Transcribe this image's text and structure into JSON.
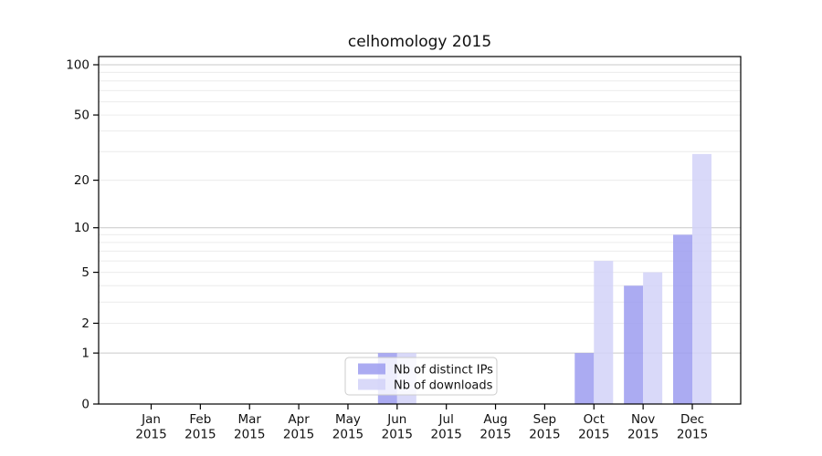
{
  "chart_data": {
    "type": "bar",
    "title": "celhomology 2015",
    "xlabel": "",
    "ylabel": "",
    "categories": [
      "Jan",
      "Feb",
      "Mar",
      "Apr",
      "May",
      "Jun",
      "Jul",
      "Aug",
      "Sep",
      "Oct",
      "Nov",
      "Dec"
    ],
    "year": "2015",
    "series": [
      {
        "name": "Nb of distinct IPs",
        "color": "#9c9cf0",
        "values": [
          0,
          0,
          0,
          0,
          0,
          1,
          0,
          0,
          0,
          1,
          4,
          9
        ]
      },
      {
        "name": "Nb of downloads",
        "color": "#d2d2f8",
        "values": [
          0,
          0,
          0,
          0,
          0,
          1,
          0,
          0,
          0,
          6,
          5,
          29
        ]
      }
    ],
    "axis": {
      "yscale": "log10(1+x)",
      "ylim": [
        0,
        112
      ],
      "y_ticks": [
        0,
        1,
        2,
        5,
        10,
        20,
        50,
        100
      ],
      "major_gridlines": [
        1,
        10,
        100
      ],
      "minor_gridlines": [
        2,
        3,
        4,
        5,
        6,
        7,
        8,
        9,
        20,
        30,
        40,
        50,
        60,
        70,
        80,
        90
      ],
      "grid": "on"
    },
    "legend_position": "lower center",
    "colors": {
      "spine": "#000000",
      "major_grid": "#c9c9c9",
      "minor_grid": "#ececec",
      "legend_border": "#cccccc",
      "legend_background": "#ffffff",
      "text": "#111111"
    }
  }
}
